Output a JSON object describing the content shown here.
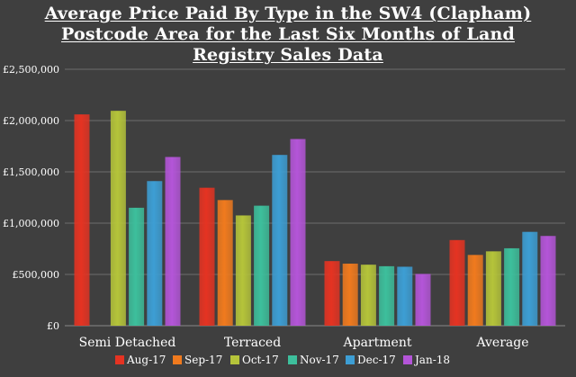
{
  "chart_data": {
    "type": "bar",
    "title": "Average Price Paid By Type in the SW4 (Clapham) Postcode Area for the Last Six Months of Land Registry Sales Data",
    "xlabel": "",
    "ylabel": "",
    "categories": [
      "Semi Detached",
      "Terraced",
      "Apartment",
      "Average"
    ],
    "ylim": [
      0,
      2500000
    ],
    "yticks": [
      0,
      500000,
      1000000,
      1500000,
      2000000,
      2500000
    ],
    "ytick_labels": [
      "£0",
      "£500,000",
      "£1,000,000",
      "£1,500,000",
      "£2,000,000",
      "£2,500,000"
    ],
    "grid": true,
    "legend_position": "bottom",
    "series": [
      {
        "name": "Aug-17",
        "color": "#e53322",
        "values": [
          2060000,
          1345000,
          630000,
          835000
        ]
      },
      {
        "name": "Sep-17",
        "color": "#f07a1e",
        "values": [
          null,
          1225000,
          605000,
          690000
        ]
      },
      {
        "name": "Oct-17",
        "color": "#b5c43a",
        "values": [
          2095000,
          1075000,
          595000,
          725000
        ]
      },
      {
        "name": "Nov-17",
        "color": "#3dbf9c",
        "values": [
          1150000,
          1170000,
          580000,
          755000
        ]
      },
      {
        "name": "Dec-17",
        "color": "#3d9ed4",
        "values": [
          1410000,
          1665000,
          575000,
          915000
        ]
      },
      {
        "name": "Jan-18",
        "color": "#b455d8",
        "values": [
          1645000,
          1820000,
          505000,
          875000
        ]
      }
    ]
  }
}
